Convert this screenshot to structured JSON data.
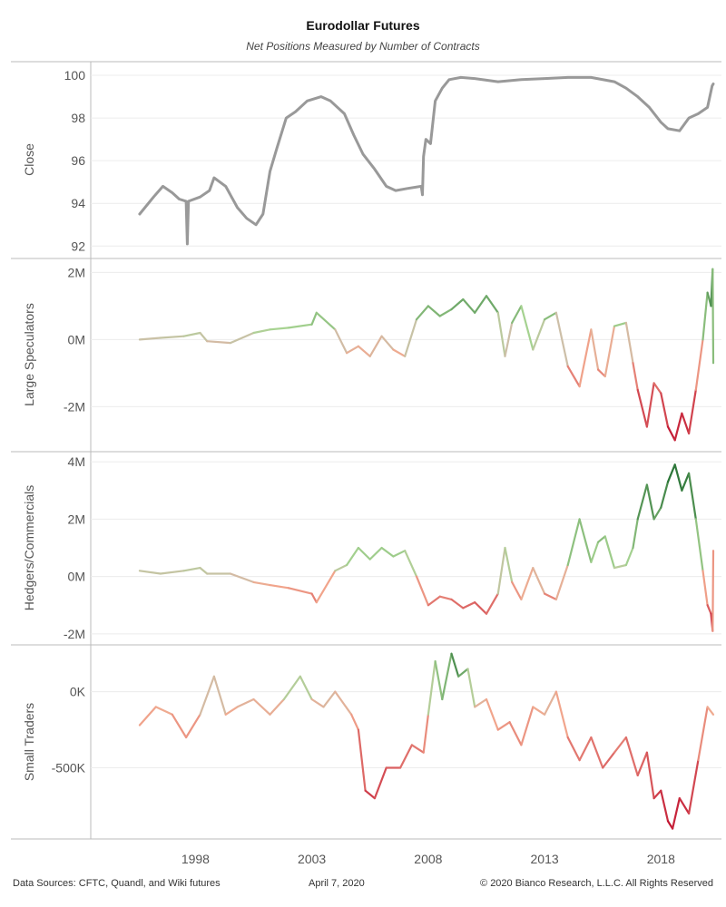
{
  "header": {
    "title": "Eurodollar Futures",
    "subtitle": "Net Positions Measured by Number of Contracts"
  },
  "footer": {
    "sources": "Data Sources: CFTC, Quandl, and Wiki futures",
    "date": "April 7, 2020",
    "copyright": "© 2020 Bianco Research, L.L.C. All Rights Reserved"
  },
  "colors": {
    "close_line": "#999999",
    "positive_strong": "#1e6b2e",
    "positive_light": "#a8d492",
    "neutral": "#cdbfa8",
    "negative_light": "#f2a88e",
    "negative_strong": "#c0102e",
    "grid": "#ececec",
    "axis": "#bbbbbb"
  },
  "chart_data": [
    {
      "type": "line",
      "ylabel": "Close",
      "ylim": [
        91.8,
        100.3
      ],
      "yticks": [
        92,
        94,
        96,
        98,
        100
      ],
      "ytick_labels": [
        "92",
        "94",
        "96",
        "98",
        "100"
      ],
      "color_mode": "solid",
      "series": [
        {
          "x": [
            1995.6,
            1996.2,
            1996.6,
            1997.0,
            1997.3,
            1997.6,
            1997.65,
            1997.7,
            1998.2,
            1998.6,
            1998.8,
            1999.3,
            1999.8,
            2000.2,
            2000.6,
            2000.9,
            2001.2,
            2001.5,
            2001.9,
            2002.3,
            2002.8,
            2003.4,
            2003.8,
            2004.4,
            2004.8,
            2005.2,
            2005.7,
            2006.2,
            2006.6,
            2007.1,
            2007.7,
            2007.75,
            2007.8,
            2007.9,
            2008.1,
            2008.3,
            2008.6,
            2008.9,
            2009.4,
            2010.0,
            2011.0,
            2012.0,
            2013.0,
            2014.0,
            2015.0,
            2016.0,
            2016.5,
            2017.0,
            2017.5,
            2018.0,
            2018.3,
            2018.8,
            2019.2,
            2019.6,
            2020.0,
            2020.2,
            2020.25
          ],
          "values": [
            93.5,
            94.3,
            94.8,
            94.5,
            94.2,
            94.1,
            92.1,
            94.1,
            94.3,
            94.6,
            95.2,
            94.8,
            93.8,
            93.3,
            93.0,
            93.5,
            95.5,
            96.6,
            98.0,
            98.3,
            98.8,
            99.0,
            98.8,
            98.2,
            97.2,
            96.3,
            95.6,
            94.8,
            94.6,
            94.7,
            94.8,
            94.4,
            96.2,
            97.0,
            96.8,
            98.8,
            99.4,
            99.8,
            99.9,
            99.85,
            99.7,
            99.8,
            99.85,
            99.9,
            99.9,
            99.7,
            99.4,
            99.0,
            98.5,
            97.8,
            97.5,
            97.4,
            98.0,
            98.2,
            98.5,
            99.5,
            99.6
          ]
        }
      ]
    },
    {
      "type": "line",
      "ylabel": "Large Speculators",
      "ylim": [
        -3.1,
        2.2
      ],
      "yticks": [
        -2,
        0,
        2
      ],
      "ytick_labels": [
        "-2M",
        "0M",
        "2M"
      ],
      "color_mode": "diverging",
      "color_range": [
        -3.0,
        2.1
      ],
      "series": [
        {
          "x": [
            1995.6,
            1996.5,
            1997.5,
            1998.2,
            1998.5,
            1999.5,
            2000.5,
            2001.2,
            2002.0,
            2003.0,
            2003.2,
            2004.0,
            2004.5,
            2005.0,
            2005.5,
            2006.0,
            2006.5,
            2007.0,
            2007.5,
            2008.0,
            2008.5,
            2009.0,
            2009.5,
            2010.0,
            2010.5,
            2011.0,
            2011.3,
            2011.6,
            2012.0,
            2012.5,
            2013.0,
            2013.5,
            2014.0,
            2014.5,
            2015.0,
            2015.3,
            2015.6,
            2016.0,
            2016.5,
            2016.8,
            2017.0,
            2017.4,
            2017.7,
            2018.0,
            2018.3,
            2018.6,
            2018.9,
            2019.2,
            2019.5,
            2019.8,
            2020.0,
            2020.15,
            2020.22,
            2020.25
          ],
          "values": [
            0.0,
            0.05,
            0.1,
            0.2,
            -0.05,
            -0.1,
            0.2,
            0.3,
            0.35,
            0.45,
            0.8,
            0.3,
            -0.4,
            -0.2,
            -0.5,
            0.1,
            -0.3,
            -0.5,
            0.6,
            1.0,
            0.7,
            0.9,
            1.2,
            0.8,
            1.3,
            0.8,
            -0.5,
            0.5,
            1.0,
            -0.3,
            0.6,
            0.8,
            -0.8,
            -1.4,
            0.3,
            -0.9,
            -1.1,
            0.4,
            0.5,
            -0.7,
            -1.5,
            -2.6,
            -1.3,
            -1.6,
            -2.6,
            -3.0,
            -2.2,
            -2.8,
            -1.5,
            0.0,
            1.4,
            1.0,
            2.1,
            -0.7
          ]
        }
      ]
    },
    {
      "type": "line",
      "ylabel": "Hedgers/Commercials",
      "ylim": [
        -2.1,
        4.1
      ],
      "yticks": [
        -2,
        0,
        2,
        4
      ],
      "ytick_labels": [
        "-2M",
        "0M",
        "2M",
        "4M"
      ],
      "color_mode": "diverging",
      "color_range": [
        -2.0,
        3.9
      ],
      "series": [
        {
          "x": [
            1995.6,
            1996.5,
            1997.5,
            1998.2,
            1998.5,
            1999.5,
            2000.5,
            2001.2,
            2002.0,
            2003.0,
            2003.2,
            2004.0,
            2004.5,
            2005.0,
            2005.5,
            2006.0,
            2006.5,
            2007.0,
            2007.5,
            2008.0,
            2008.5,
            2009.0,
            2009.5,
            2010.0,
            2010.5,
            2011.0,
            2011.3,
            2011.6,
            2012.0,
            2012.5,
            2013.0,
            2013.5,
            2014.0,
            2014.5,
            2015.0,
            2015.3,
            2015.6,
            2016.0,
            2016.5,
            2016.8,
            2017.0,
            2017.4,
            2017.7,
            2018.0,
            2018.3,
            2018.6,
            2018.9,
            2019.2,
            2019.5,
            2019.8,
            2020.0,
            2020.15,
            2020.22,
            2020.25
          ],
          "values": [
            0.2,
            0.1,
            0.2,
            0.3,
            0.1,
            0.1,
            -0.2,
            -0.3,
            -0.4,
            -0.6,
            -0.9,
            0.2,
            0.4,
            1.0,
            0.6,
            1.0,
            0.7,
            0.9,
            0.0,
            -1.0,
            -0.7,
            -0.8,
            -1.1,
            -0.9,
            -1.3,
            -0.6,
            1.0,
            -0.2,
            -0.8,
            0.3,
            -0.6,
            -0.8,
            0.4,
            2.0,
            0.5,
            1.2,
            1.4,
            0.3,
            0.4,
            1.0,
            2.0,
            3.2,
            2.0,
            2.4,
            3.3,
            3.9,
            3.0,
            3.6,
            2.0,
            0.2,
            -1.0,
            -1.3,
            -1.9,
            0.9
          ]
        }
      ]
    },
    {
      "type": "line",
      "ylabel": "Small Traders",
      "ylim": [
        -920,
        260
      ],
      "yticks": [
        -500,
        0
      ],
      "ytick_labels": [
        "-500K",
        "0K"
      ],
      "color_mode": "diverging",
      "color_range": [
        -900,
        250
      ],
      "series": [
        {
          "x": [
            1995.6,
            1996.3,
            1997.0,
            1997.6,
            1998.2,
            1998.8,
            1999.3,
            1999.8,
            2000.5,
            2001.2,
            2001.8,
            2002.5,
            2003.0,
            2003.5,
            2004.0,
            2004.7,
            2005.0,
            2005.3,
            2005.7,
            2006.2,
            2006.8,
            2007.3,
            2007.8,
            2008.0,
            2008.3,
            2008.6,
            2009.0,
            2009.3,
            2009.7,
            2010.0,
            2010.5,
            2011.0,
            2011.5,
            2012.0,
            2012.5,
            2013.0,
            2013.5,
            2014.0,
            2014.5,
            2015.0,
            2015.5,
            2016.0,
            2016.5,
            2017.0,
            2017.4,
            2017.7,
            2018.0,
            2018.3,
            2018.5,
            2018.8,
            2019.2,
            2019.6,
            2020.0,
            2020.25
          ],
          "values": [
            -220,
            -100,
            -150,
            -300,
            -150,
            100,
            -150,
            -100,
            -50,
            -150,
            -50,
            100,
            -50,
            -100,
            0,
            -150,
            -250,
            -650,
            -700,
            -500,
            -500,
            -350,
            -400,
            -150,
            200,
            -50,
            250,
            100,
            150,
            -100,
            -50,
            -250,
            -200,
            -350,
            -100,
            -150,
            0,
            -300,
            -450,
            -300,
            -500,
            -400,
            -300,
            -550,
            -400,
            -700,
            -650,
            -850,
            -900,
            -700,
            -800,
            -450,
            -100,
            -150
          ]
        }
      ]
    }
  ],
  "x_axis": {
    "xlim": [
      1993.5,
      2020.6
    ],
    "ticks": [
      1998,
      2003,
      2008,
      2013,
      2018
    ],
    "tick_labels": [
      "1998",
      "2003",
      "2008",
      "2013",
      "2018"
    ]
  }
}
